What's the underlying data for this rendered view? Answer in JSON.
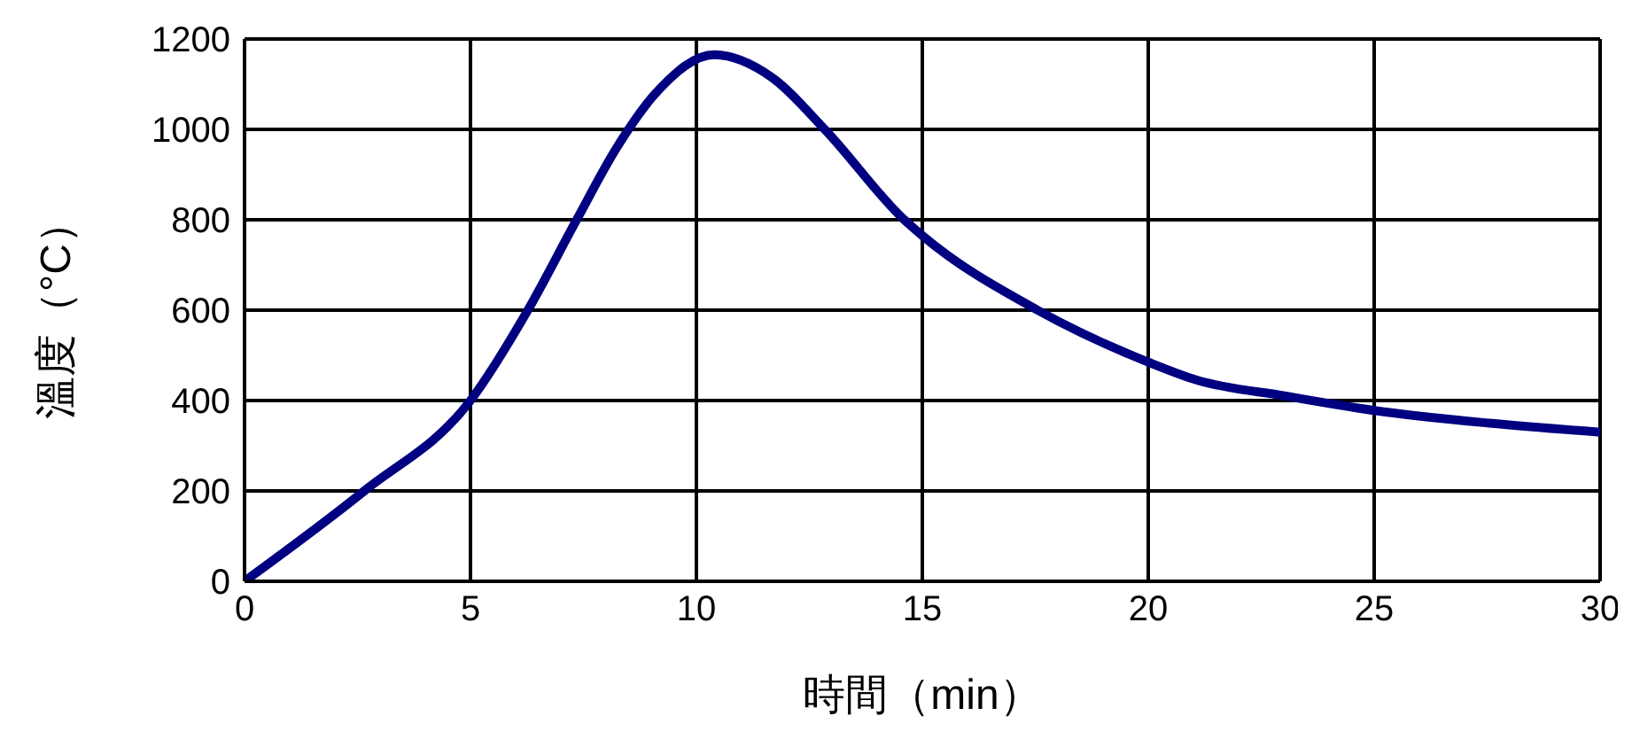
{
  "chart_data": {
    "type": "line",
    "xlabel": "時間（min）",
    "ylabel": "溫度（°C）",
    "x": [
      0,
      2.65,
      5,
      6.27,
      7.35,
      8.24,
      9.1,
      10.4,
      11.67,
      12.84,
      14.6,
      15,
      17.55,
      20,
      21.08,
      23.04,
      25,
      27.55,
      30
    ],
    "series": [
      {
        "color": "#000080",
        "values": [
          0,
          200,
          400,
          600,
          800,
          960,
          1080,
          1165,
          1115,
          1000,
          800,
          765,
          600,
          485,
          445,
          410,
          378,
          350,
          330
        ]
      }
    ],
    "xlim": [
      0,
      30
    ],
    "xticks": [
      0,
      5,
      10,
      15,
      20,
      25,
      30
    ],
    "ylim": [
      0,
      1200
    ],
    "yticks": [
      0,
      200,
      400,
      600,
      800,
      1000,
      1200
    ],
    "grid": true,
    "legend": false,
    "marker": "none",
    "line_style": "solid"
  }
}
